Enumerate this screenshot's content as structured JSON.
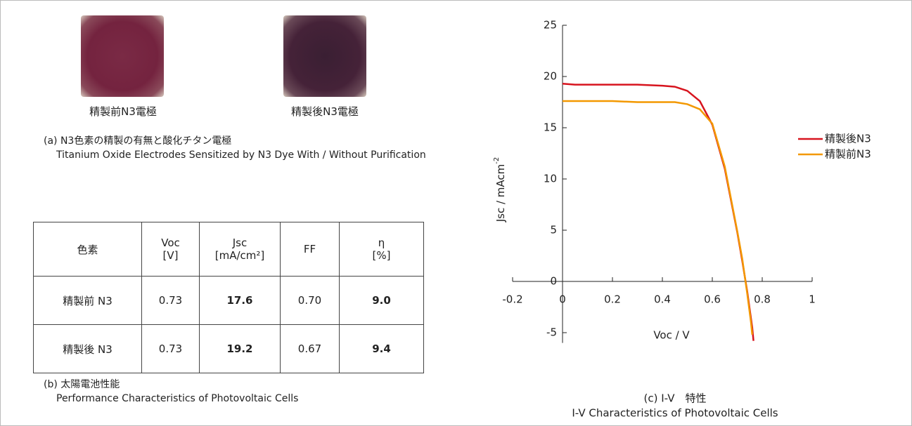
{
  "photos": {
    "left_caption": "精製前N3電極",
    "right_caption": "精製後N3電極",
    "caption_label": "(a) N3色素の精製の有無と酸化チタン電極",
    "caption_english": "Titanium Oxide Electrodes Sensitized by N3 Dye With / Without Purification"
  },
  "table": {
    "header": [
      [
        "色素"
      ],
      [
        "Voc",
        "[V]"
      ],
      [
        "Jsc",
        "[mA/cm²]"
      ],
      [
        "FF"
      ],
      [
        "η",
        "[%]"
      ]
    ],
    "rows": [
      [
        "精製前 N3",
        "0.73",
        "17.6",
        "0.70",
        "9.0"
      ],
      [
        "精製後 N3",
        "0.73",
        "19.2",
        "0.67",
        "9.4"
      ]
    ],
    "caption_label": "(b) 太陽電池性能",
    "caption_english": "Performance Characteristics of Photovoltaic Cells"
  },
  "chart_data": {
    "type": "line",
    "x_label": "Voc / V",
    "y_label": "Jsc / mAcm",
    "y_label_sup": "-2",
    "caption_label": "(c) I-V　特性",
    "caption_english": "I-V Characteristics of Photovoltaic Cells",
    "xlim": [
      -0.2,
      1
    ],
    "ylim": [
      -6,
      25
    ],
    "xticks": [
      -0.2,
      0,
      0.2,
      0.4,
      0.6,
      0.8,
      1
    ],
    "yticks": [
      -5,
      0,
      5,
      10,
      15,
      20,
      25
    ],
    "legend": "right",
    "series": [
      {
        "name": "精製後N3",
        "color": "#d7141e",
        "x": [
          0,
          0.05,
          0.1,
          0.2,
          0.3,
          0.4,
          0.45,
          0.5,
          0.55,
          0.6,
          0.65,
          0.7,
          0.72,
          0.74,
          0.76,
          0.765
        ],
        "values": [
          19.3,
          19.2,
          19.2,
          19.2,
          19.2,
          19.1,
          19.0,
          18.6,
          17.6,
          15.3,
          11.0,
          4.8,
          2.0,
          -1.0,
          -4.5,
          -5.8
        ]
      },
      {
        "name": "精製前N3",
        "color": "#f39800",
        "x": [
          0,
          0.1,
          0.2,
          0.3,
          0.4,
          0.45,
          0.5,
          0.55,
          0.6,
          0.65,
          0.7,
          0.72,
          0.74,
          0.755,
          0.76
        ],
        "values": [
          17.6,
          17.6,
          17.6,
          17.5,
          17.5,
          17.5,
          17.3,
          16.8,
          15.4,
          11.2,
          4.9,
          2.2,
          -1.2,
          -4.0,
          -5.2
        ]
      }
    ]
  }
}
